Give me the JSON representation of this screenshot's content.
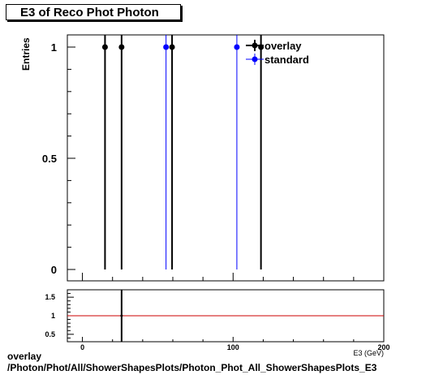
{
  "title": "E3 of Reco Phot Photon",
  "footer": {
    "line1": "overlay",
    "line2": "/Photon/Phot/All/ShowerShapesPlots/Photon_Phot_All_ShowerShapesPlots_E3"
  },
  "colors": {
    "overlay": "#000000",
    "standard": "#0000ff",
    "ratio_line": "#cc0000"
  },
  "chart_data": [
    {
      "type": "line",
      "title": "E3 of Reco Phot Photon",
      "xlabel": "E3 (GeV)",
      "ylabel": "Entries",
      "xlim": [
        -10,
        200
      ],
      "ylim": [
        0,
        1.05
      ],
      "yticks": [
        0,
        0.5,
        1
      ],
      "ytick_labels": [
        "0",
        "0.5",
        "1"
      ],
      "legend_position": "top-right",
      "series": [
        {
          "name": "overlay",
          "x": [
            15,
            26,
            59.5,
            118.5
          ],
          "y": [
            1,
            1,
            1,
            1
          ]
        },
        {
          "name": "standard",
          "x": [
            55.5,
            102.5
          ],
          "y": [
            1,
            1
          ]
        }
      ]
    },
    {
      "type": "line",
      "title": "",
      "xlabel": "E3 (GeV)",
      "ylabel": "",
      "xlim": [
        -10,
        200
      ],
      "ylim": [
        0.3,
        1.7
      ],
      "xticks": [
        0,
        100,
        200
      ],
      "xtick_labels": [
        "0",
        "100",
        "200"
      ],
      "yticks": [
        0.5,
        1,
        1.5
      ],
      "ytick_labels": [
        "0.5",
        "1",
        "1.5"
      ],
      "reference_line": 1,
      "series": [
        {
          "name": "",
          "x": [
            26
          ],
          "y": [
            1
          ]
        }
      ]
    }
  ]
}
